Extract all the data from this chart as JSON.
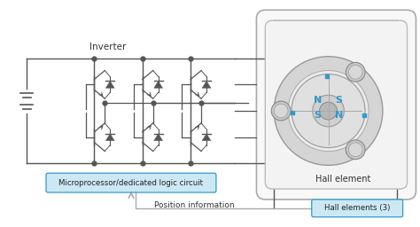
{
  "bg_color": "#ffffff",
  "line_color": "#555555",
  "blue_color": "#3399cc",
  "light_blue_fill": "#cce8f4",
  "gray_fill": "#cccccc",
  "title": "Inverter",
  "label_microprocessor": "Microprocessor/dedicated logic circuit",
  "label_hall_element": "Hall element",
  "label_position_info": "Position information",
  "label_hall_elements3": "Hall elements (3)",
  "s_label": "S",
  "n_label": "N",
  "figsize": [
    4.74,
    2.56
  ],
  "dpi": 100
}
